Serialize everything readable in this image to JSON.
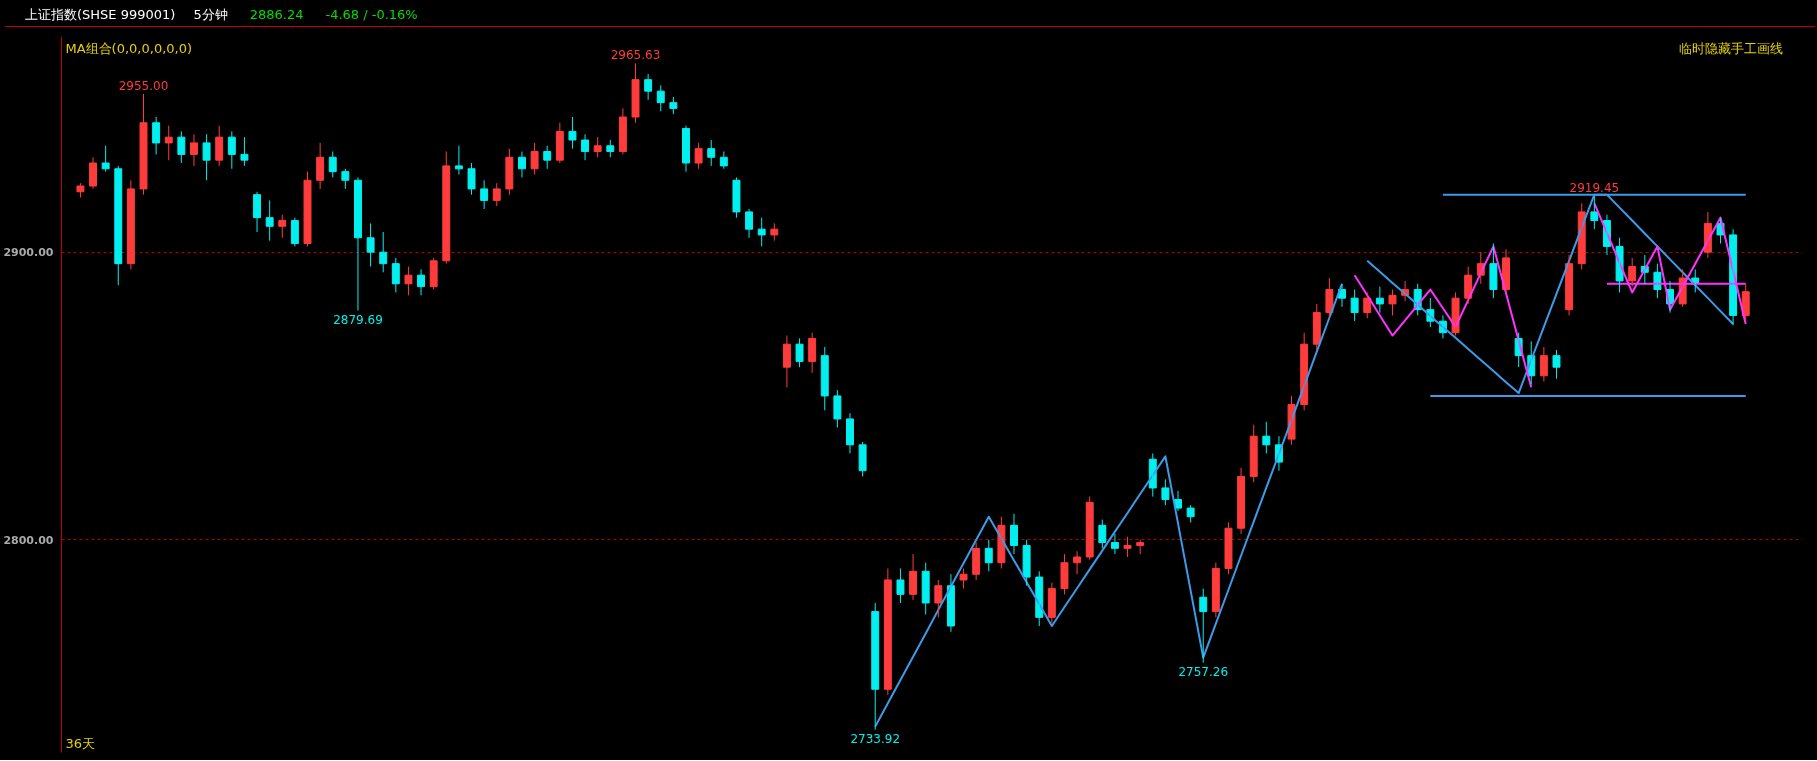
{
  "chart_data": {
    "type": "candlestick",
    "title": "上证指数(SHSE 999001)",
    "subtitle": "5分钟",
    "annotations": [
      "2886.24",
      "-4.68 / -0.16%",
      "MA组合(0,0,0,0,0,0)",
      "临时隐藏手工画线",
      "36天",
      {
        "text": "2955.00",
        "y": 2955.0
      },
      {
        "text": "2879.69",
        "y": 2879.69
      },
      {
        "text": "2965.63",
        "y": 2965.63
      },
      {
        "text": "2733.92",
        "y": 2733.92
      },
      {
        "text": "2757.26",
        "y": 2757.26
      },
      {
        "text": "2919.45",
        "y": 2919.45
      }
    ],
    "categories": [
      null,
      null,
      null,
      null,
      null,
      null,
      null,
      null,
      null,
      null,
      null,
      null,
      null,
      null,
      null,
      null,
      null,
      null,
      null,
      null,
      null,
      null,
      null,
      null,
      null,
      null,
      null,
      null,
      null,
      null,
      null,
      null,
      null,
      null,
      null,
      null,
      null,
      null,
      null,
      null,
      null,
      null,
      null,
      null,
      null,
      null,
      null,
      null,
      null,
      null,
      null,
      null,
      null,
      null,
      null,
      null,
      null,
      null,
      null,
      null,
      null,
      null,
      null,
      null,
      null,
      null,
      null,
      null,
      null,
      null,
      null,
      null,
      null,
      null,
      null,
      null,
      null,
      null,
      null,
      null,
      null,
      null,
      null,
      null,
      null,
      null,
      null,
      null,
      null,
      null,
      null,
      null,
      null,
      null,
      null,
      null,
      null,
      null,
      null,
      null,
      null,
      null,
      null,
      null,
      null,
      null,
      null,
      null,
      null,
      null,
      null,
      null,
      null,
      null,
      null,
      null,
      null,
      null,
      null,
      null,
      null,
      null,
      null,
      null,
      null,
      null,
      null,
      null,
      null,
      null,
      null,
      null,
      null
    ],
    "ohlc": [
      [
        2921,
        2924,
        2919,
        2923
      ],
      [
        2923,
        2933,
        2922,
        2931
      ],
      [
        2931,
        2937,
        2928,
        2929
      ],
      [
        2929,
        2930,
        2888.5,
        2896
      ],
      [
        2896,
        2925,
        2894,
        2922
      ],
      [
        2922,
        2955,
        2920,
        2945
      ],
      [
        2945,
        2947,
        2934,
        2938
      ],
      [
        2938,
        2944,
        2932,
        2940
      ],
      [
        2940,
        2942,
        2931,
        2934
      ],
      [
        2934,
        2941,
        2930,
        2938
      ],
      [
        2938,
        2941,
        2925,
        2932
      ],
      [
        2932,
        2944,
        2930,
        2940
      ],
      [
        2940,
        2942,
        2929,
        2934
      ],
      [
        2934,
        2940,
        2930,
        2932
      ],
      [
        2920,
        2921,
        2907,
        2912
      ],
      [
        2912,
        2918,
        2904,
        2909
      ],
      [
        2909,
        2913,
        2905,
        2911
      ],
      [
        2911,
        2912,
        2902,
        2903
      ],
      [
        2903,
        2928,
        2902,
        2925
      ],
      [
        2925,
        2938,
        2922,
        2933
      ],
      [
        2933,
        2935,
        2926,
        2928
      ],
      [
        2928,
        2929,
        2922,
        2925
      ],
      [
        2925,
        2926,
        2879.69,
        2905
      ],
      [
        2905,
        2910,
        2895,
        2900
      ],
      [
        2900,
        2907,
        2893,
        2896
      ],
      [
        2896,
        2898,
        2886,
        2889
      ],
      [
        2889,
        2895,
        2885,
        2892
      ],
      [
        2892,
        2894,
        2885,
        2888
      ],
      [
        2888,
        2898,
        2887,
        2897
      ],
      [
        2897,
        2935,
        2896,
        2930
      ],
      [
        2930,
        2937,
        2927,
        2929
      ],
      [
        2929,
        2931,
        2920,
        2922
      ],
      [
        2922,
        2925,
        2915,
        2918
      ],
      [
        2918,
        2924,
        2916,
        2922
      ],
      [
        2922,
        2936,
        2920,
        2933
      ],
      [
        2933,
        2935,
        2926,
        2929
      ],
      [
        2929,
        2938,
        2927,
        2935
      ],
      [
        2935,
        2937,
        2929,
        2932
      ],
      [
        2932,
        2945,
        2931,
        2942
      ],
      [
        2942,
        2947,
        2936,
        2939
      ],
      [
        2939,
        2941,
        2932,
        2935
      ],
      [
        2935,
        2940,
        2933,
        2937
      ],
      [
        2937,
        2939,
        2933,
        2935
      ],
      [
        2935,
        2950,
        2934,
        2947
      ],
      [
        2947,
        2965.63,
        2945,
        2960
      ],
      [
        2960,
        2962,
        2953,
        2956
      ],
      [
        2956,
        2958,
        2949,
        2952
      ],
      [
        2952,
        2954,
        2948,
        2950
      ],
      [
        2943,
        2944,
        2928,
        2931
      ],
      [
        2931,
        2938,
        2929,
        2936
      ],
      [
        2936,
        2939,
        2930,
        2933
      ],
      [
        2933,
        2935,
        2929,
        2930
      ],
      [
        2925,
        2926,
        2912,
        2914
      ],
      [
        2914,
        2915,
        2905,
        2908
      ],
      [
        2908,
        2912,
        2902,
        2906
      ],
      [
        2906,
        2910,
        2904,
        2908
      ],
      [
        2860,
        2871,
        2853,
        2868
      ],
      [
        2868,
        2870,
        2860,
        2862
      ],
      [
        2862,
        2872,
        2858,
        2870
      ],
      [
        2864,
        2867,
        2845,
        2850
      ],
      [
        2850,
        2852,
        2839,
        2842
      ],
      [
        2842,
        2844,
        2830,
        2833
      ],
      [
        2833,
        2834,
        2822,
        2824
      ],
      [
        2775,
        2778,
        2733.92,
        2748
      ],
      [
        2748,
        2790,
        2746,
        2786
      ],
      [
        2786,
        2790,
        2778,
        2781
      ],
      [
        2781,
        2795,
        2779,
        2789
      ],
      [
        2789,
        2792,
        2774,
        2778
      ],
      [
        2778,
        2786,
        2773,
        2784
      ],
      [
        2784,
        2788,
        2768,
        2770
      ],
      [
        2786,
        2790,
        2783,
        2788
      ],
      [
        2788,
        2799,
        2786,
        2797
      ],
      [
        2797,
        2800,
        2789,
        2792
      ],
      [
        2792,
        2808,
        2790,
        2805
      ],
      [
        2805,
        2809,
        2795,
        2798
      ],
      [
        2798,
        2800,
        2784,
        2787
      ],
      [
        2787,
        2789,
        2770,
        2773
      ],
      [
        2773,
        2785,
        2771,
        2783
      ],
      [
        2783,
        2795,
        2781,
        2792
      ],
      [
        2792,
        2796,
        2788,
        2794
      ],
      [
        2794,
        2815,
        2793,
        2813
      ],
      [
        2805,
        2807,
        2797,
        2799
      ],
      [
        2799,
        2802,
        2795,
        2797
      ],
      [
        2797,
        2801,
        2794,
        2798
      ],
      [
        2798,
        2800,
        2795,
        2799
      ],
      [
        2828,
        2830,
        2815,
        2818
      ],
      [
        2818,
        2821,
        2812,
        2814
      ],
      [
        2814,
        2817,
        2810,
        2811
      ],
      [
        2811,
        2812,
        2806,
        2808
      ],
      [
        2780,
        2783,
        2757.26,
        2775
      ],
      [
        2775,
        2792,
        2773,
        2790
      ],
      [
        2790,
        2806,
        2788,
        2804
      ],
      [
        2804,
        2825,
        2802,
        2822
      ],
      [
        2822,
        2840,
        2820,
        2836
      ],
      [
        2836,
        2841,
        2830,
        2833
      ],
      [
        2833,
        2836,
        2824,
        2827
      ],
      [
        2835,
        2850,
        2833,
        2847
      ],
      [
        2847,
        2872,
        2845,
        2868
      ],
      [
        2868,
        2882,
        2866,
        2879
      ],
      [
        2879,
        2891,
        2877,
        2887
      ],
      [
        2887,
        2889,
        2881,
        2884
      ],
      [
        2884,
        2887,
        2876,
        2879
      ],
      [
        2879,
        2886,
        2877,
        2884
      ],
      [
        2884,
        2888,
        2879,
        2882
      ],
      [
        2882,
        2887,
        2878,
        2885
      ],
      [
        2885,
        2890,
        2883,
        2887
      ],
      [
        2887,
        2889,
        2878,
        2880
      ],
      [
        2880,
        2884,
        2874,
        2876
      ],
      [
        2876,
        2878,
        2870,
        2872
      ],
      [
        2872,
        2886,
        2871,
        2884
      ],
      [
        2884,
        2895,
        2882,
        2892
      ],
      [
        2892,
        2900,
        2889,
        2896
      ],
      [
        2896,
        2903,
        2884,
        2887
      ],
      [
        2887,
        2901,
        2886,
        2898
      ],
      [
        2870,
        2872,
        2860,
        2864
      ],
      [
        2864,
        2869,
        2854,
        2857
      ],
      [
        2857,
        2867,
        2855,
        2864
      ],
      [
        2864,
        2866,
        2856,
        2860
      ],
      [
        2880,
        2899,
        2878,
        2896
      ],
      [
        2896,
        2917,
        2894,
        2914
      ],
      [
        2914,
        2919.45,
        2908,
        2911
      ],
      [
        2911,
        2913,
        2899,
        2902
      ],
      [
        2902,
        2905,
        2886,
        2890
      ],
      [
        2890,
        2898,
        2888,
        2895
      ],
      [
        2895,
        2899,
        2889,
        2893
      ],
      [
        2893,
        2896,
        2884,
        2887
      ],
      [
        2887,
        2890,
        2879,
        2882
      ],
      [
        2882,
        2894,
        2881,
        2891
      ],
      [
        2891,
        2894,
        2886,
        2889
      ],
      [
        2900,
        2914,
        2898,
        2910
      ],
      [
        2910,
        2912,
        2903,
        2906
      ],
      [
        2906,
        2908,
        2874.6,
        2878
      ],
      [
        2878,
        2889,
        2876,
        2886.24
      ]
    ],
    "series": [
      {
        "type": "line",
        "color": "#3d9be9",
        "values": [
          null,
          null,
          null,
          null,
          null,
          null,
          null,
          null,
          null,
          null,
          null,
          null,
          null,
          null,
          null,
          null,
          null,
          null,
          null,
          null,
          null,
          null,
          null,
          null,
          null,
          null,
          null,
          null,
          null,
          null,
          null,
          null,
          null,
          null,
          null,
          null,
          null,
          null,
          null,
          null,
          null,
          null,
          null,
          null,
          null,
          null,
          null,
          null,
          null,
          null,
          null,
          null,
          null,
          null,
          null,
          null,
          null,
          null,
          null,
          null,
          null,
          null,
          null,
          2735,
          2743.1,
          2751.2,
          2759.3,
          2767.4,
          2775.6,
          2783.7,
          2791.8,
          2799.9,
          2808,
          2800.4,
          2792.8,
          2785.2,
          2777.6,
          2770,
          2776.6,
          2783.1,
          2789.7,
          2796.2,
          2802.8,
          2809.3,
          2815.9,
          2822.4,
          2829,
          2805.7,
          2782.3,
          2759,
          2770.8,
          2782.6,
          2794.5,
          2806.3,
          2818.1,
          2829.9,
          2841.7,
          2853.5,
          2865.4,
          2877.2,
          2889,
          null,
          null,
          null,
          null,
          null,
          null,
          null,
          null,
          null,
          null,
          null,
          null,
          null,
          null,
          null,
          null,
          null,
          null,
          null,
          null,
          null,
          null,
          null,
          null,
          null,
          null,
          null,
          null,
          null,
          null,
          null,
          null
        ]
      },
      {
        "type": "line",
        "color": "#3d9be9",
        "values": [
          null,
          null,
          null,
          null,
          null,
          null,
          null,
          null,
          null,
          null,
          null,
          null,
          null,
          null,
          null,
          null,
          null,
          null,
          null,
          null,
          null,
          null,
          null,
          null,
          null,
          null,
          null,
          null,
          null,
          null,
          null,
          null,
          null,
          null,
          null,
          null,
          null,
          null,
          null,
          null,
          null,
          null,
          null,
          null,
          null,
          null,
          null,
          null,
          null,
          null,
          null,
          null,
          null,
          null,
          null,
          null,
          null,
          null,
          null,
          null,
          null,
          null,
          null,
          null,
          null,
          null,
          null,
          null,
          null,
          null,
          null,
          null,
          null,
          null,
          null,
          null,
          null,
          null,
          null,
          null,
          null,
          null,
          null,
          null,
          null,
          null,
          null,
          null,
          null,
          null,
          null,
          null,
          null,
          null,
          null,
          null,
          null,
          null,
          null,
          null,
          null,
          null,
          2897,
          2893.2,
          2889.3,
          2885.5,
          2881.7,
          2877.8,
          2874,
          2870.2,
          2866.3,
          2862.5,
          2858.7,
          2854.8,
          2851,
          2862.5,
          2874,
          2885.5,
          2897,
          2908.5,
          2920,
          2920,
          2915.5,
          2911,
          2906.5,
          2902,
          2897.5,
          2893,
          2888.5,
          2884,
          2879.5,
          2875,
          null
        ]
      },
      {
        "type": "line",
        "color": "#3d9be9",
        "values": [
          null,
          null,
          null,
          null,
          null,
          null,
          null,
          null,
          null,
          null,
          null,
          null,
          null,
          null,
          null,
          null,
          null,
          null,
          null,
          null,
          null,
          null,
          null,
          null,
          null,
          null,
          null,
          null,
          null,
          null,
          null,
          null,
          null,
          null,
          null,
          null,
          null,
          null,
          null,
          null,
          null,
          null,
          null,
          null,
          null,
          null,
          null,
          null,
          null,
          null,
          null,
          null,
          null,
          null,
          null,
          null,
          null,
          null,
          null,
          null,
          null,
          null,
          null,
          null,
          null,
          null,
          null,
          null,
          null,
          null,
          null,
          null,
          null,
          null,
          null,
          null,
          null,
          null,
          null,
          null,
          null,
          null,
          null,
          null,
          null,
          null,
          null,
          null,
          null,
          null,
          null,
          null,
          null,
          null,
          null,
          null,
          null,
          null,
          null,
          null,
          null,
          null,
          null,
          null,
          null,
          null,
          null,
          null,
          2920,
          2920,
          2920,
          2920,
          2920,
          2920,
          2920,
          2920,
          2920,
          2920,
          2920,
          2920,
          2920,
          2920,
          2920,
          2920,
          2920,
          2920,
          2920,
          2920,
          2920,
          2920,
          2920,
          2920,
          2920
        ]
      },
      {
        "type": "line",
        "color": "#3d9be9",
        "values": [
          null,
          null,
          null,
          null,
          null,
          null,
          null,
          null,
          null,
          null,
          null,
          null,
          null,
          null,
          null,
          null,
          null,
          null,
          null,
          null,
          null,
          null,
          null,
          null,
          null,
          null,
          null,
          null,
          null,
          null,
          null,
          null,
          null,
          null,
          null,
          null,
          null,
          null,
          null,
          null,
          null,
          null,
          null,
          null,
          null,
          null,
          null,
          null,
          null,
          null,
          null,
          null,
          null,
          null,
          null,
          null,
          null,
          null,
          null,
          null,
          null,
          null,
          null,
          null,
          null,
          null,
          null,
          null,
          null,
          null,
          null,
          null,
          null,
          null,
          null,
          null,
          null,
          null,
          null,
          null,
          null,
          null,
          null,
          null,
          null,
          null,
          null,
          null,
          null,
          null,
          null,
          null,
          null,
          null,
          null,
          null,
          null,
          null,
          null,
          null,
          null,
          null,
          null,
          null,
          null,
          null,
          null,
          2850,
          2850,
          2850,
          2850,
          2850,
          2850,
          2850,
          2850,
          2850,
          2850,
          2850,
          2850,
          2850,
          2850,
          2850,
          2850,
          2850,
          2850,
          2850,
          2850,
          2850,
          2850,
          2850,
          2850,
          2850,
          2850
        ]
      },
      {
        "type": "line",
        "color": "#ff33ff",
        "values": [
          null,
          null,
          null,
          null,
          null,
          null,
          null,
          null,
          null,
          null,
          null,
          null,
          null,
          null,
          null,
          null,
          null,
          null,
          null,
          null,
          null,
          null,
          null,
          null,
          null,
          null,
          null,
          null,
          null,
          null,
          null,
          null,
          null,
          null,
          null,
          null,
          null,
          null,
          null,
          null,
          null,
          null,
          null,
          null,
          null,
          null,
          null,
          null,
          null,
          null,
          null,
          null,
          null,
          null,
          null,
          null,
          null,
          null,
          null,
          null,
          null,
          null,
          null,
          null,
          null,
          null,
          null,
          null,
          null,
          null,
          null,
          null,
          null,
          null,
          null,
          null,
          null,
          null,
          null,
          null,
          null,
          null,
          null,
          null,
          null,
          null,
          null,
          null,
          null,
          null,
          null,
          null,
          null,
          null,
          null,
          null,
          null,
          null,
          null,
          null,
          null,
          2892,
          2885,
          2878,
          2871,
          2876.3,
          2881.7,
          2887,
          2880.5,
          2874,
          2883.3,
          2892.7,
          2902,
          2885.7,
          2869.3,
          2853,
          null,
          null,
          null,
          null,
          null,
          null,
          null,
          null,
          null,
          null,
          null,
          null,
          null,
          null,
          null,
          null,
          null
        ]
      },
      {
        "type": "line",
        "color": "#ff33ff",
        "values": [
          null,
          null,
          null,
          null,
          null,
          null,
          null,
          null,
          null,
          null,
          null,
          null,
          null,
          null,
          null,
          null,
          null,
          null,
          null,
          null,
          null,
          null,
          null,
          null,
          null,
          null,
          null,
          null,
          null,
          null,
          null,
          null,
          null,
          null,
          null,
          null,
          null,
          null,
          null,
          null,
          null,
          null,
          null,
          null,
          null,
          null,
          null,
          null,
          null,
          null,
          null,
          null,
          null,
          null,
          null,
          null,
          null,
          null,
          null,
          null,
          null,
          null,
          null,
          null,
          null,
          null,
          null,
          null,
          null,
          null,
          null,
          null,
          null,
          null,
          null,
          null,
          null,
          null,
          null,
          null,
          null,
          null,
          null,
          null,
          null,
          null,
          null,
          null,
          null,
          null,
          null,
          null,
          null,
          null,
          null,
          null,
          null,
          null,
          null,
          null,
          null,
          null,
          null,
          null,
          null,
          null,
          null,
          null,
          null,
          null,
          null,
          null,
          null,
          null,
          null,
          null,
          null,
          null,
          null,
          null,
          2917,
          2906.7,
          2896.3,
          2886,
          2894,
          2902,
          2880,
          2888,
          2896,
          2904,
          2912,
          2893.5,
          2875
        ]
      },
      {
        "type": "line",
        "color": "#ff33ff",
        "values": [
          null,
          null,
          null,
          null,
          null,
          null,
          null,
          null,
          null,
          null,
          null,
          null,
          null,
          null,
          null,
          null,
          null,
          null,
          null,
          null,
          null,
          null,
          null,
          null,
          null,
          null,
          null,
          null,
          null,
          null,
          null,
          null,
          null,
          null,
          null,
          null,
          null,
          null,
          null,
          null,
          null,
          null,
          null,
          null,
          null,
          null,
          null,
          null,
          null,
          null,
          null,
          null,
          null,
          null,
          null,
          null,
          null,
          null,
          null,
          null,
          null,
          null,
          null,
          null,
          null,
          null,
          null,
          null,
          null,
          null,
          null,
          null,
          null,
          null,
          null,
          null,
          null,
          null,
          null,
          null,
          null,
          null,
          null,
          null,
          null,
          null,
          null,
          null,
          null,
          null,
          null,
          null,
          null,
          null,
          null,
          null,
          null,
          null,
          null,
          null,
          null,
          null,
          null,
          null,
          null,
          null,
          null,
          null,
          null,
          null,
          null,
          null,
          null,
          null,
          null,
          null,
          null,
          null,
          null,
          null,
          null,
          2889,
          2889,
          2889,
          2889,
          2889,
          2889,
          2889,
          2889,
          2889,
          2889,
          2889,
          2889
        ]
      }
    ],
    "ylim": [
      2726,
      2975
    ],
    "yticks": [
      {
        "value": 2800,
        "label": "2800.00"
      },
      {
        "value": 2900,
        "label": "2900.00"
      }
    ],
    "grid": "y"
  }
}
